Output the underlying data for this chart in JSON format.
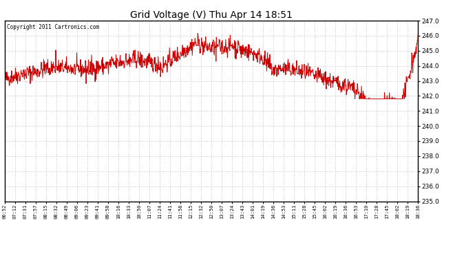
{
  "title": "Grid Voltage (V) Thu Apr 14 18:51",
  "copyright": "Copyright 2011 Cartronics.com",
  "line_color": "#cc0000",
  "background_color": "#ffffff",
  "grid_color": "#bbbbbb",
  "ylim": [
    235.0,
    247.0
  ],
  "yticks": [
    235.0,
    236.0,
    237.0,
    238.0,
    239.0,
    240.0,
    241.0,
    242.0,
    243.0,
    244.0,
    245.0,
    246.0,
    247.0
  ],
  "xtick_labels": [
    "06:52",
    "07:12",
    "07:31",
    "07:57",
    "08:15",
    "08:32",
    "08:49",
    "09:06",
    "09:23",
    "09:41",
    "09:58",
    "10:16",
    "10:33",
    "10:50",
    "11:07",
    "11:24",
    "11:41",
    "11:58",
    "12:15",
    "12:32",
    "12:50",
    "13:07",
    "13:24",
    "13:43",
    "14:01",
    "14:19",
    "14:36",
    "14:53",
    "15:11",
    "15:28",
    "15:45",
    "16:02",
    "16:19",
    "16:36",
    "16:53",
    "17:10",
    "17:28",
    "17:45",
    "18:02",
    "18:19",
    "18:36"
  ],
  "seed": 42,
  "figwidth": 6.9,
  "figheight": 3.75,
  "dpi": 100
}
